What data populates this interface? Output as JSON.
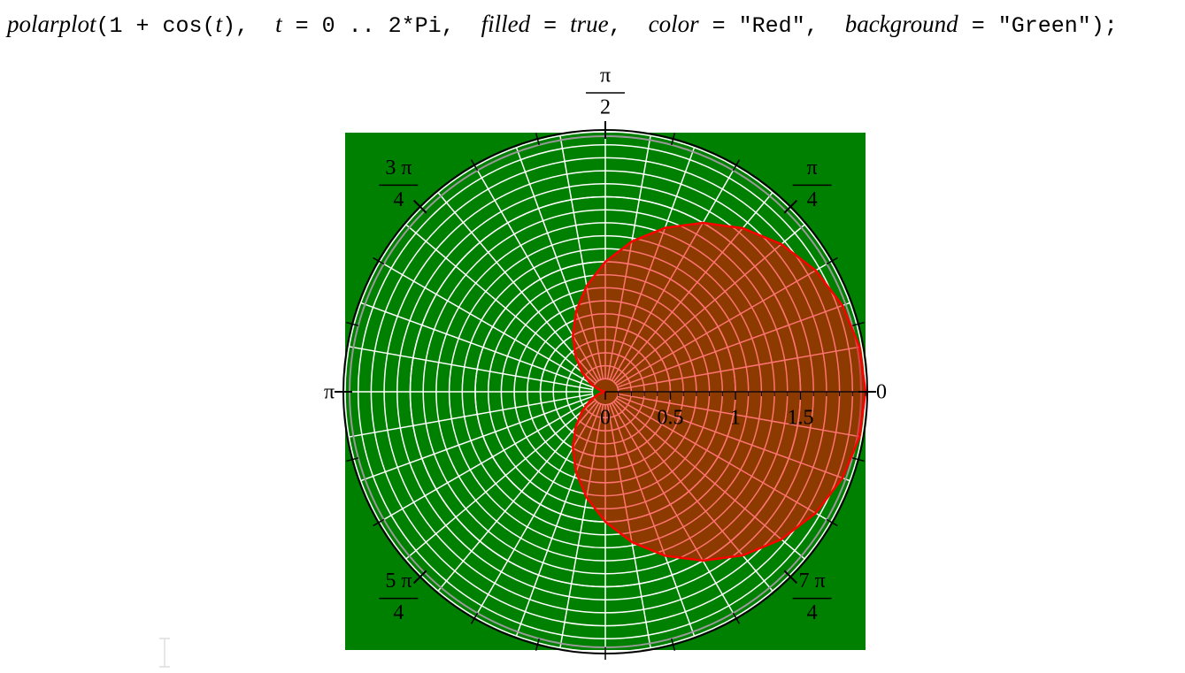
{
  "command": [
    "polarplot",
    "(1 + cos(",
    "t",
    "),  ",
    "t",
    " = 0 .. 2*Pi,  ",
    "filled",
    " = ",
    "true",
    ",  ",
    "color",
    " = \"Red\",  ",
    "background",
    " = \"Green\");"
  ],
  "chart_data": {
    "type": "polar",
    "background": "#008000",
    "color": "#ff0000",
    "filled": true,
    "grid": true,
    "rlim": [
      0,
      2
    ],
    "rticks": [
      0,
      0.5,
      1,
      1.5
    ],
    "thetaticks": [
      0,
      {
        "value": 45,
        "numerator": "π",
        "denominator": "4"
      },
      {
        "value": 90,
        "numerator": "π",
        "denominator": "2"
      },
      {
        "value": 135,
        "numerator": "3 π",
        "denominator": "4"
      },
      {
        "value": 180,
        "label": "π"
      },
      {
        "value": 225,
        "numerator": "5 π",
        "denominator": "4"
      },
      {
        "value": 315,
        "numerator": "7 π",
        "denominator": "4"
      }
    ],
    "x": [
      0,
      10,
      20,
      30,
      40,
      50,
      60,
      70,
      80,
      90,
      100,
      110,
      120,
      130,
      140,
      150,
      160,
      170,
      180,
      190,
      200,
      210,
      220,
      230,
      240,
      250,
      260,
      270,
      280,
      290,
      300,
      310,
      320,
      330,
      340,
      350,
      360
    ],
    "values": [
      2,
      1.985,
      1.94,
      1.866,
      1.766,
      1.643,
      1.5,
      1.342,
      1.174,
      1,
      0.826,
      0.658,
      0.5,
      0.357,
      0.234,
      0.134,
      0.06,
      0.015,
      0,
      0.015,
      0.06,
      0.134,
      0.234,
      0.357,
      0.5,
      0.658,
      0.826,
      1,
      1.174,
      1.342,
      1.5,
      1.643,
      1.766,
      1.866,
      1.94,
      1.985,
      2
    ]
  }
}
